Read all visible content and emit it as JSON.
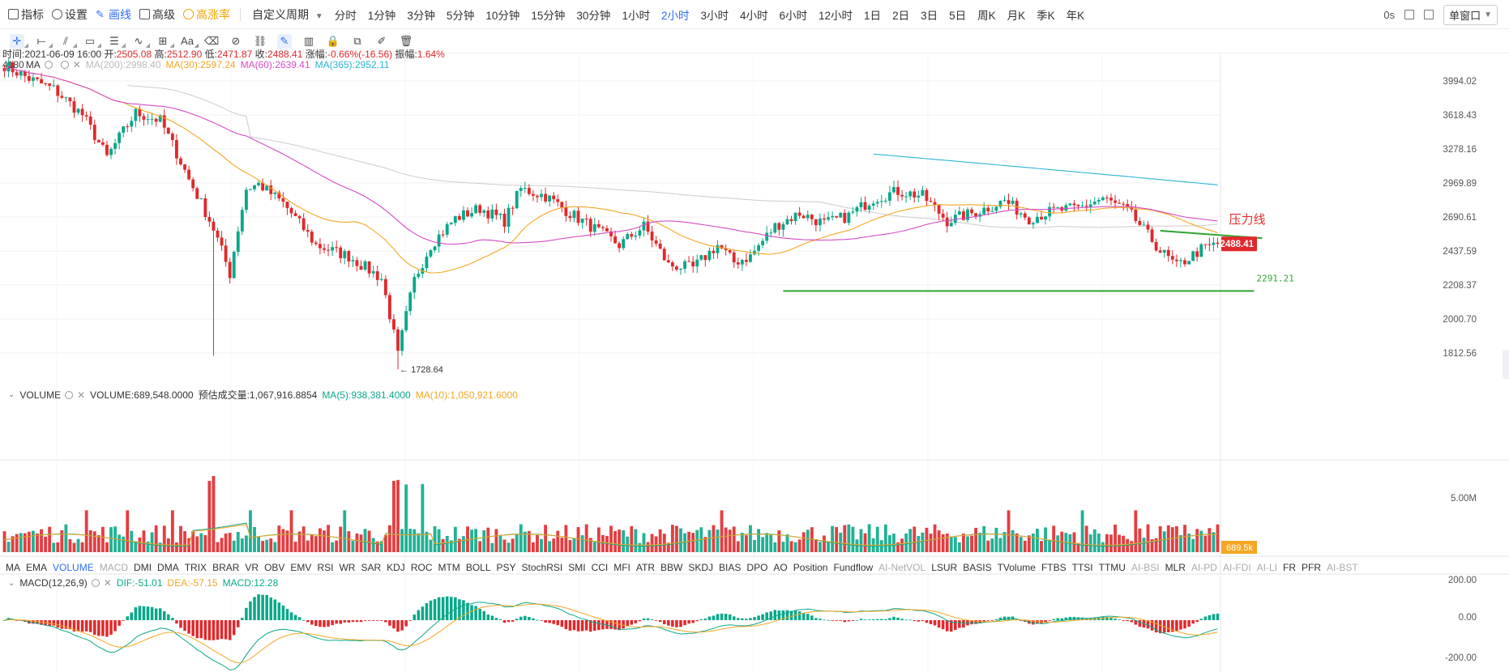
{
  "toolbar": {
    "indicators": "指标",
    "settings": "设置",
    "draw": "画线",
    "advanced": "高级",
    "rise_rate": "高涨率",
    "custom_period": "自定义周期",
    "periods": [
      "分时",
      "1分钟",
      "3分钟",
      "5分钟",
      "10分钟",
      "15分钟",
      "30分钟",
      "1小时",
      "2小时",
      "3小时",
      "4小时",
      "6小时",
      "12小时",
      "1日",
      "2日",
      "3日",
      "5日",
      "周K",
      "月K",
      "季K",
      "年K"
    ],
    "active_period": "2小时",
    "latency": "0s",
    "window_mode": "单窗口"
  },
  "draw_tools": [
    "cross-icon",
    "horizontal-ray-icon",
    "parallel-lines-icon",
    "rectangle-icon",
    "fib-icon",
    "wave-icon",
    "measure-icon",
    "text-tool-icon",
    "eraser-icon",
    "hide-icon",
    "link-icon",
    "highlight-icon",
    "candle-type-icon",
    "lock-icon",
    "copy-icon",
    "edit-icon",
    "trash-icon"
  ],
  "draw_text_label": "Aa",
  "info_line": {
    "time": "时间:2021-06-09 16:00",
    "open_label": "开:",
    "open": "2505.08",
    "high_label": "高:",
    "high": "2512.90",
    "low_label": "低:",
    "low": "2471.87",
    "close_label": "收:",
    "close": "2488.41",
    "change_label": "涨幅:",
    "change": "-0.66%(-16.56)",
    "amplitude_label": "振幅:",
    "amplitude": "1.64%"
  },
  "ma_line": {
    "name": "MA",
    "ma200": "MA(200):2998.40",
    "ma30": "MA(30):2597.24",
    "ma60": "MA(60):2639.41",
    "ma365": "MA(365):2952.11"
  },
  "volume_head": {
    "name": "VOLUME",
    "volume": "VOLUME:689,548.0000",
    "est": "预估成交量:1,067,916.8854",
    "ma5": "MA(5):938,381.4000",
    "ma10": "MA(10):1,050,921.6000"
  },
  "macd_head": {
    "name": "MACD(12,26,9)",
    "dif": "DIF:-51.01",
    "dea": "DEA:-57.15",
    "macd": "MACD:12.28"
  },
  "indicator_tabs": [
    "MA",
    "EMA",
    "VOLUME",
    "MACD",
    "DMI",
    "DMA",
    "TRIX",
    "BRAR",
    "VR",
    "OBV",
    "EMV",
    "RSI",
    "WR",
    "SAR",
    "KDJ",
    "ROC",
    "MTM",
    "BOLL",
    "PSY",
    "StochRSI",
    "SMI",
    "CCI",
    "MFI",
    "ATR",
    "BBW",
    "SKDJ",
    "BIAS",
    "DPO",
    "AO",
    "Position",
    "Fundflow",
    "AI-NetVOL",
    "LSUR",
    "BASIS",
    "TVolume",
    "FTBS",
    "TTSI",
    "TTMU",
    "AI-BSI",
    "MLR",
    "AI-PD",
    "AI-FDI",
    "AI-LI",
    "FR",
    "PFR",
    "AI-BST"
  ],
  "active_indicator_tabs": [
    "VOLUME"
  ],
  "dim_indicator_tabs": [
    "MACD",
    "AI-NetVOL",
    "AI-BSI",
    "AI-PD",
    "AI-FDI",
    "AI-LI",
    "AI-BST"
  ],
  "annotations": {
    "low_label": "1728.64",
    "support_label": "2291.21",
    "resistance_label": "压力线",
    "first_high_fragment": "4180"
  },
  "colors": {
    "up": "#0aa88a",
    "down": "#e0292c",
    "ma30": "#f5a623",
    "ma60": "#d64bc4",
    "ma365": "#2bb5d4",
    "ma200": "#cccccc",
    "trendline": "#2fa52f",
    "accent": "#2b6ef0"
  },
  "chart_data": {
    "type": "candlestick",
    "instrument_period": "2小时",
    "price_axis": {
      "ticks": [
        3994.02,
        3618.43,
        3278.16,
        2969.89,
        2690.61,
        2437.59,
        2208.37,
        2000.7,
        1812.56
      ],
      "current_price": "2488.41",
      "scale": "log"
    },
    "volume_axis": {
      "ticks": [
        "5.00M"
      ],
      "current": "689.5k"
    },
    "macd_axis": {
      "ticks": [
        "200.00",
        "0.00",
        "-200.00"
      ]
    },
    "swing_points": [
      [
        0,
        4180
      ],
      [
        6,
        4020
      ],
      [
        12,
        3900
      ],
      [
        19,
        3620
      ],
      [
        25,
        3200
      ],
      [
        32,
        3640
      ],
      [
        38,
        3560
      ],
      [
        45,
        3000
      ],
      [
        51,
        2600
      ],
      [
        55,
        2280
      ],
      [
        59,
        2920
      ],
      [
        62,
        2960
      ],
      [
        68,
        2800
      ],
      [
        76,
        2480
      ],
      [
        84,
        2400
      ],
      [
        92,
        2250
      ],
      [
        96,
        1800
      ],
      [
        100,
        2240
      ],
      [
        104,
        2480
      ],
      [
        110,
        2680
      ],
      [
        116,
        2760
      ],
      [
        122,
        2660
      ],
      [
        126,
        2920
      ],
      [
        132,
        2860
      ],
      [
        138,
        2720
      ],
      [
        144,
        2600
      ],
      [
        150,
        2480
      ],
      [
        156,
        2620
      ],
      [
        162,
        2340
      ],
      [
        168,
        2320
      ],
      [
        174,
        2480
      ],
      [
        178,
        2360
      ],
      [
        182,
        2400
      ],
      [
        188,
        2620
      ],
      [
        194,
        2720
      ],
      [
        200,
        2640
      ],
      [
        206,
        2700
      ],
      [
        212,
        2840
      ],
      [
        218,
        2900
      ],
      [
        224,
        2860
      ],
      [
        230,
        2660
      ],
      [
        238,
        2740
      ],
      [
        244,
        2820
      ],
      [
        250,
        2680
      ],
      [
        256,
        2740
      ],
      [
        262,
        2760
      ],
      [
        268,
        2840
      ],
      [
        274,
        2740
      ],
      [
        282,
        2440
      ],
      [
        286,
        2330
      ],
      [
        292,
        2450
      ],
      [
        296,
        2488.41
      ]
    ],
    "extreme_low": 1728.64,
    "support_level": 2291.21,
    "ma_notes": "MA(30) orange, MA(60) magenta, MA(365) cyan, MA(200) light gray"
  }
}
